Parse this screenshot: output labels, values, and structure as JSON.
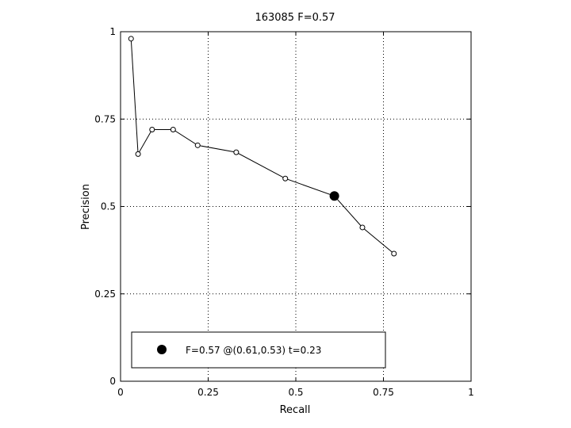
{
  "chart_data": {
    "type": "line",
    "title": "163085 F=0.57",
    "xlabel": "Recall",
    "ylabel": "Precision",
    "xlim": [
      0,
      1
    ],
    "ylim": [
      0,
      1
    ],
    "grid": true,
    "x_ticks": [
      0,
      0.25,
      0.5,
      0.75,
      1
    ],
    "y_ticks": [
      0,
      0.25,
      0.5,
      0.75,
      1
    ],
    "x_tick_labels": [
      "0",
      "0.25",
      "0.5",
      "0.75",
      "1"
    ],
    "y_tick_labels": [
      "0",
      "0.25",
      "0.5",
      "0.75",
      "1"
    ],
    "series": [
      {
        "x": [
          0.03,
          0.05,
          0.09,
          0.15,
          0.22,
          0.33,
          0.47,
          0.61,
          0.69,
          0.78
        ],
        "y": [
          0.98,
          0.65,
          0.72,
          0.72,
          0.675,
          0.655,
          0.58,
          0.53,
          0.44,
          0.365
        ]
      }
    ],
    "highlight_point": {
      "x": 0.61,
      "y": 0.53
    },
    "legend": {
      "text": "F=0.57 @(0.61,0.53) t=0.23",
      "placement": "bottom-left"
    },
    "colors": {
      "line": "#000000",
      "grid": "#000000"
    }
  }
}
